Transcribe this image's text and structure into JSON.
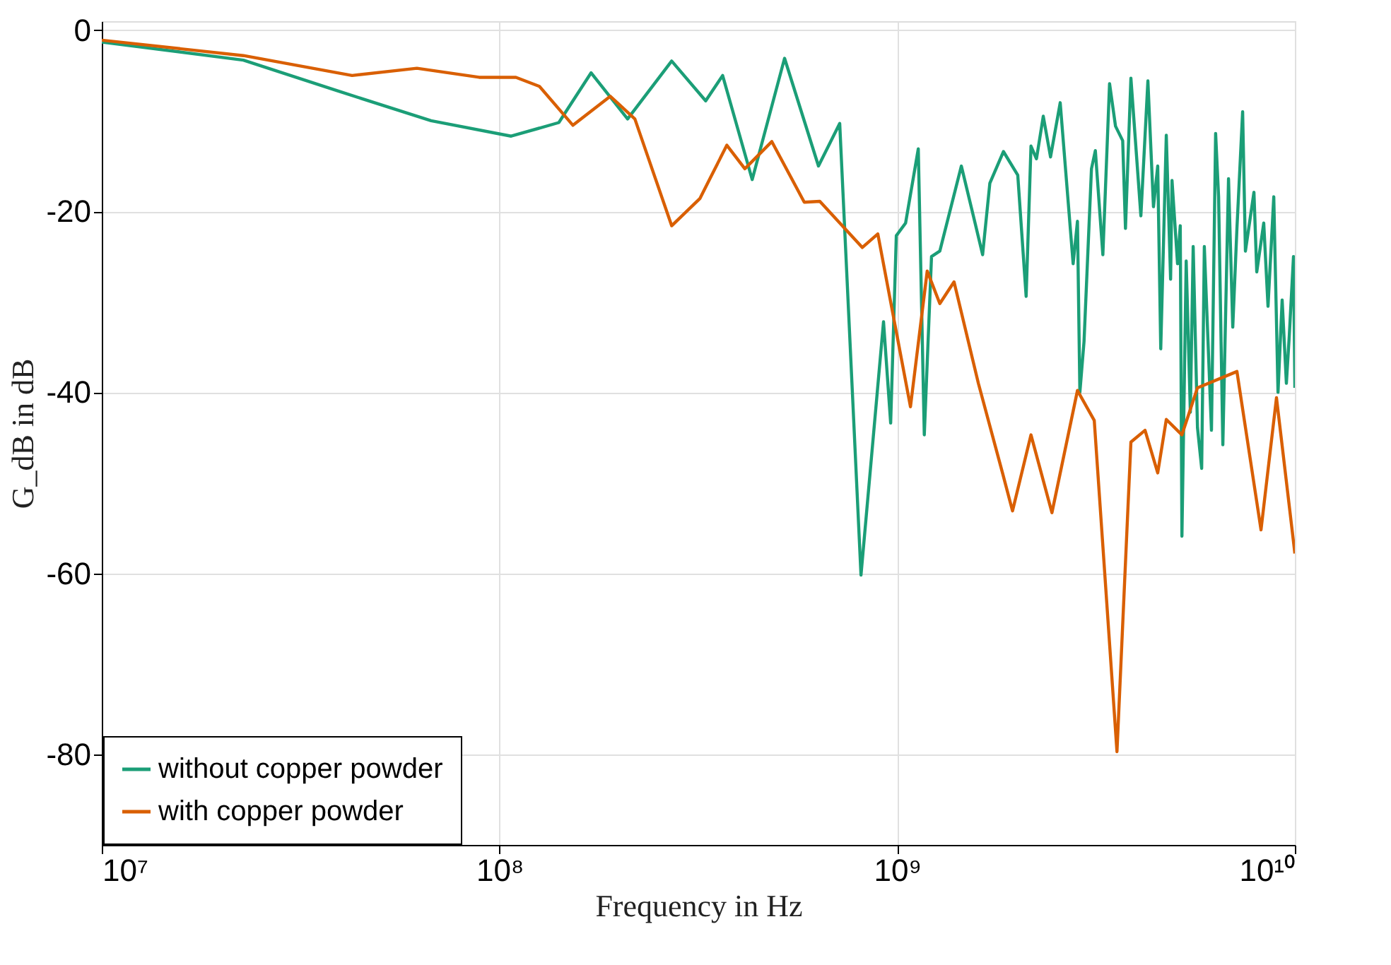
{
  "chart_data": {
    "type": "line",
    "xlabel": "Frequency in Hz",
    "ylabel": "G_dB in dB",
    "log": "x",
    "grid": true,
    "legend": "bottom left",
    "line_style": "solid",
    "marker": "none",
    "xlim": [
      10000000,
      10000000000
    ],
    "xticks": [
      {
        "value": 10000000,
        "label": "10⁷"
      },
      {
        "value": 100000000,
        "label": "10⁸"
      },
      {
        "value": 1000000000,
        "label": "10⁹"
      },
      {
        "value": 10000000000,
        "label": "10¹⁰"
      }
    ],
    "ylim": [
      -90,
      1
    ],
    "yticks": [
      0,
      -20,
      -40,
      -60,
      -80
    ],
    "series": [
      {
        "name": "without copper powder",
        "color": "#1b9e77",
        "x": [
          10000000.0,
          22700000.0,
          39200000.0,
          67300000.0,
          107000000.0,
          141000000.0,
          170000000.0,
          210000000.0,
          271000000.0,
          330000000.0,
          364000000.0,
          432000000.0,
          521000000.0,
          634000000.0,
          717000000.0,
          811000000.0,
          924000000.0,
          963000000.0,
          995000000.0,
          1050000000.0,
          1130000000.0,
          1170000000.0,
          1220000000.0,
          1280000000.0,
          1450000000.0,
          1560000000.0,
          1640000000.0,
          1710000000.0,
          1850000000.0,
          2010000000.0,
          2110000000.0,
          2170000000.0,
          2240000000.0,
          2330000000.0,
          2430000000.0,
          2570000000.0,
          2770000000.0,
          2840000000.0,
          2880000000.0,
          2950000000.0,
          3080000000.0,
          3150000000.0,
          3290000000.0,
          3420000000.0,
          3540000000.0,
          3690000000.0,
          3750000000.0,
          3870000000.0,
          4100000000.0,
          4270000000.0,
          4410000000.0,
          4520000000.0,
          4600000000.0,
          4750000000.0,
          4870000000.0,
          4910000000.0,
          5070000000.0,
          5150000000.0,
          5200000000.0,
          5330000000.0,
          5460000000.0,
          5550000000.0,
          5690000000.0,
          5830000000.0,
          5920000000.0,
          6170000000.0,
          6320000000.0,
          6430000000.0,
          6590000000.0,
          6810000000.0,
          6980000000.0,
          7150000000.0,
          7390000000.0,
          7510000000.0,
          7890000000.0,
          8020000000.0,
          8350000000.0,
          8560000000.0,
          8850000000.0,
          9070000000.0,
          9290000000.0,
          9520000000.0,
          9680000000.0,
          9920000000.0,
          10000000000.0
        ],
        "values": [
          -1.3,
          -3.3,
          -6.7,
          -10,
          -11.7,
          -10.2,
          -4.7,
          -9.8,
          -3.4,
          -7.8,
          -5,
          -16.5,
          -3.1,
          -15,
          -10.3,
          -60.2,
          -32.2,
          -43.4,
          -22.7,
          -21.3,
          -13.1,
          -44.7,
          -25,
          -24.4,
          -15,
          -20.8,
          -24.8,
          -16.9,
          -13.4,
          -16,
          -29.4,
          -12.8,
          -14.2,
          -9.5,
          -14,
          -8,
          -25.8,
          -21.1,
          -40,
          -34.4,
          -15.3,
          -13.3,
          -24.8,
          -5.9,
          -10.6,
          -12.2,
          -21.9,
          -5.3,
          -20.5,
          -5.6,
          -19.5,
          -15,
          -35.2,
          -11.6,
          -27.5,
          -16.6,
          -25.8,
          -21.6,
          -55.9,
          -25.5,
          -42.2,
          -23.9,
          -43.9,
          -48.4,
          -23.9,
          -44.2,
          -11.4,
          -18.4,
          -45.8,
          -16.4,
          -32.8,
          -21.9,
          -9,
          -24.4,
          -17.9,
          -26.7,
          -21.3,
          -30.5,
          -18.4,
          -40,
          -29.8,
          -39,
          -33.8,
          -25,
          -39.5
        ]
      },
      {
        "name": "with copper powder",
        "color": "#d95f02",
        "x": [
          10000000.0,
          22700000.0,
          42600000.0,
          62000000.0,
          88900000.0,
          110000000.0,
          126000000.0,
          153000000.0,
          190000000.0,
          219000000.0,
          271000000.0,
          319000000.0,
          373000000.0,
          414000000.0,
          484000000.0,
          584000000.0,
          639000000.0,
          817000000.0,
          894000000.0,
          1080000000.0,
          1190000000.0,
          1280000000.0,
          1390000000.0,
          1600000000.0,
          1840000000.0,
          1950000000.0,
          2170000000.0,
          2450000000.0,
          2840000000.0,
          3130000000.0,
          3570000000.0,
          3870000000.0,
          4200000000.0,
          4520000000.0,
          4750000000.0,
          5200000000.0,
          5690000000.0,
          7150000000.0,
          8220000000.0,
          8990000000.0,
          10000000000.0
        ],
        "values": [
          -1.1,
          -2.8,
          -5,
          -4.2,
          -5.2,
          -5.2,
          -6.2,
          -10.5,
          -7.3,
          -9.8,
          -21.6,
          -18.6,
          -12.7,
          -15.3,
          -12.3,
          -19,
          -18.9,
          -24,
          -22.5,
          -41.6,
          -26.6,
          -30.2,
          -27.8,
          -39,
          -48.9,
          -53.1,
          -44.7,
          -53.3,
          -39.8,
          -43.1,
          -79.7,
          -45.5,
          -44.2,
          -48.9,
          -43,
          -44.7,
          -39.5,
          -37.7,
          -55.2,
          -40.6,
          -57.8
        ]
      }
    ]
  }
}
